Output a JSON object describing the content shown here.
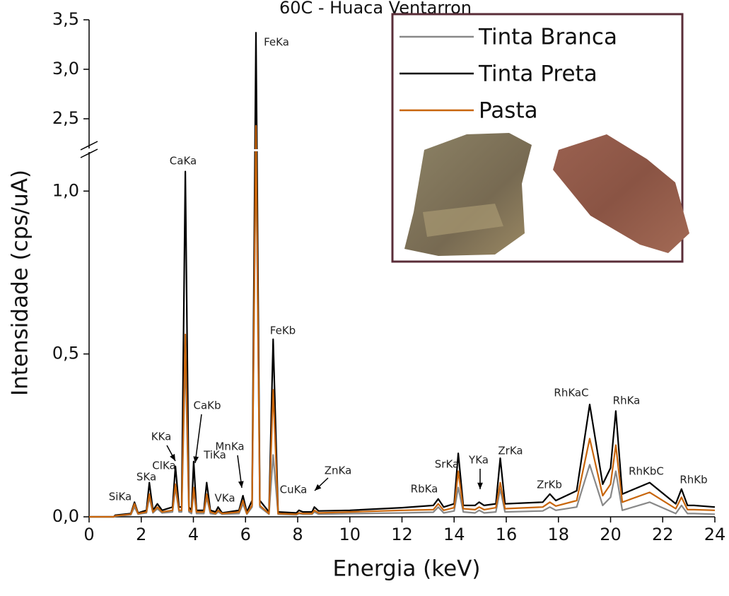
{
  "chart_data": {
    "type": "line",
    "title": "60C - Huaca Ventarron",
    "x_label": "Energia (keV)",
    "y_label": "Intensidade (cps/uA)",
    "xlim": [
      0,
      24
    ],
    "xticks": [
      0,
      2,
      4,
      6,
      8,
      10,
      12,
      14,
      16,
      18,
      20,
      22,
      24
    ],
    "ylim": [
      0,
      3.5
    ],
    "ybreak": [
      1.12,
      2.2
    ],
    "yticks": [
      {
        "value": 0,
        "label": "0,0"
      },
      {
        "value": 0.5,
        "label": "0,5"
      },
      {
        "value": 1.0,
        "label": "1,0"
      },
      {
        "value": 2.5,
        "label": "2,5"
      },
      {
        "value": 3.0,
        "label": "3,0"
      },
      {
        "value": 3.5,
        "label": "3,5"
      }
    ],
    "legend": "upper right",
    "x": [
      0,
      0.95,
      1.0,
      1.6,
      1.74,
      1.88,
      2.0,
      2.2,
      2.31,
      2.45,
      2.62,
      2.8,
      3.2,
      3.31,
      3.45,
      3.55,
      3.69,
      3.83,
      3.93,
      4.01,
      4.12,
      4.4,
      4.51,
      4.65,
      4.85,
      4.95,
      5.1,
      5.75,
      5.9,
      6.05,
      6.25,
      6.4,
      6.55,
      6.9,
      7.06,
      7.25,
      7.95,
      8.05,
      8.2,
      8.55,
      8.64,
      8.8,
      10,
      12,
      13.2,
      13.39,
      13.6,
      14.0,
      14.16,
      14.35,
      14.8,
      14.96,
      15.15,
      15.6,
      15.77,
      15.95,
      17.4,
      17.67,
      17.9,
      18.7,
      19.2,
      19.7,
      20.0,
      20.2,
      20.45,
      21.5,
      22.5,
      22.72,
      22.95,
      23.2,
      24
    ],
    "series": [
      {
        "name": "Tinta Branca",
        "color": "#888888",
        "values": [
          0,
          0,
          0.002,
          0.006,
          0.03,
          0.008,
          0.01,
          0.012,
          0.06,
          0.012,
          0.025,
          0.012,
          0.015,
          0.09,
          0.015,
          0.015,
          0.5,
          0.015,
          0.01,
          0.08,
          0.01,
          0.01,
          0.06,
          0.01,
          0.008,
          0.015,
          0.008,
          0.01,
          0.04,
          0.008,
          0.03,
          2.3,
          0.03,
          0.008,
          0.19,
          0.008,
          0.006,
          0.01,
          0.008,
          0.008,
          0.015,
          0.008,
          0.01,
          0.012,
          0.014,
          0.03,
          0.012,
          0.018,
          0.09,
          0.015,
          0.012,
          0.02,
          0.012,
          0.015,
          0.085,
          0.015,
          0.018,
          0.03,
          0.02,
          0.03,
          0.16,
          0.035,
          0.06,
          0.14,
          0.02,
          0.045,
          0.01,
          0.035,
          0.01,
          0.01,
          0.008
        ]
      },
      {
        "name": "Tinta Preta",
        "color": "#000000",
        "values": [
          0,
          0,
          0.005,
          0.01,
          0.045,
          0.012,
          0.015,
          0.02,
          0.105,
          0.02,
          0.04,
          0.02,
          0.03,
          0.155,
          0.03,
          0.03,
          1.06,
          0.03,
          0.02,
          0.17,
          0.02,
          0.02,
          0.105,
          0.02,
          0.015,
          0.03,
          0.012,
          0.02,
          0.065,
          0.015,
          0.05,
          3.37,
          0.05,
          0.015,
          0.545,
          0.015,
          0.012,
          0.02,
          0.015,
          0.015,
          0.03,
          0.018,
          0.02,
          0.028,
          0.035,
          0.055,
          0.03,
          0.04,
          0.195,
          0.035,
          0.035,
          0.045,
          0.035,
          0.04,
          0.18,
          0.04,
          0.045,
          0.07,
          0.05,
          0.08,
          0.345,
          0.1,
          0.15,
          0.325,
          0.07,
          0.105,
          0.04,
          0.085,
          0.035,
          0.035,
          0.03
        ]
      },
      {
        "name": "Pasta",
        "color": "#c8650a",
        "values": [
          0,
          0,
          0.003,
          0.008,
          0.04,
          0.01,
          0.012,
          0.015,
          0.07,
          0.015,
          0.03,
          0.015,
          0.02,
          0.1,
          0.02,
          0.02,
          0.56,
          0.02,
          0.015,
          0.09,
          0.015,
          0.015,
          0.07,
          0.015,
          0.01,
          0.02,
          0.01,
          0.015,
          0.05,
          0.01,
          0.035,
          2.43,
          0.035,
          0.01,
          0.39,
          0.01,
          0.008,
          0.012,
          0.01,
          0.01,
          0.02,
          0.012,
          0.015,
          0.02,
          0.022,
          0.04,
          0.02,
          0.028,
          0.14,
          0.025,
          0.022,
          0.03,
          0.022,
          0.028,
          0.105,
          0.025,
          0.03,
          0.045,
          0.033,
          0.05,
          0.24,
          0.065,
          0.1,
          0.22,
          0.045,
          0.075,
          0.025,
          0.06,
          0.022,
          0.022,
          0.02
        ]
      }
    ],
    "annotations": [
      "SiKa",
      "SKa",
      "ClKa",
      "KKa",
      "CaKa",
      "CaKb",
      "TiKa",
      "VKa",
      "MnKa",
      "FeKa",
      "FeKb",
      "CuKa",
      "ZnKa",
      "RbKa",
      "SrKa",
      "YKa",
      "ZrKa",
      "ZrKb",
      "RhKaC",
      "RhKa",
      "RhKbC",
      "RhKb"
    ]
  }
}
